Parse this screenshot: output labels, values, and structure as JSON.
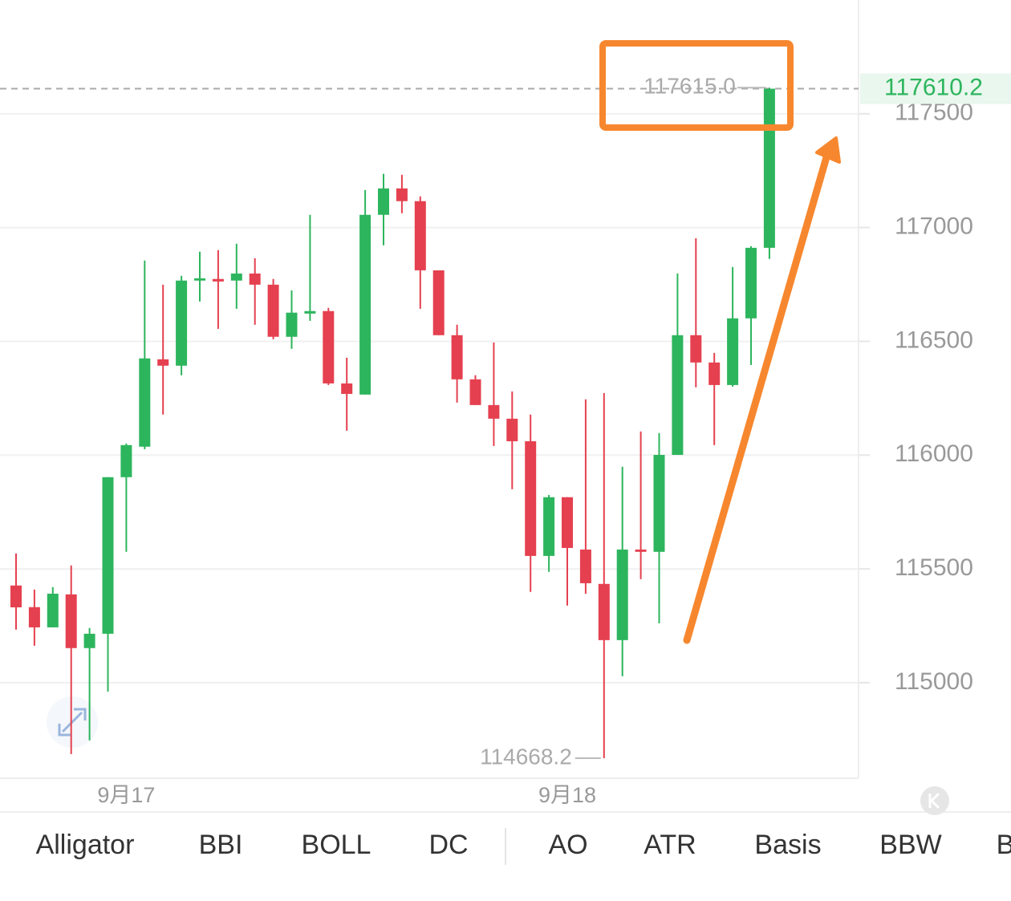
{
  "chart_data": {
    "type": "candlestick",
    "categories": [
      null,
      null,
      null,
      null,
      null,
      null,
      "9月17",
      null,
      null,
      null,
      null,
      null,
      null,
      null,
      null,
      null,
      null,
      null,
      null,
      null,
      null,
      null,
      null,
      null,
      null,
      null,
      null,
      null,
      null,
      null,
      "9月18",
      null,
      null,
      null,
      null,
      null,
      null,
      null,
      null,
      null,
      null,
      null
    ],
    "open": [
      115427,
      115332,
      115243,
      115388,
      115152,
      115215,
      115903,
      116037,
      116421,
      116393,
      116767,
      116774,
      116767,
      116798,
      116749,
      116520,
      116622,
      116633,
      116315,
      116266,
      117056,
      117172,
      117116,
      116812,
      116527,
      116333,
      116220,
      116160,
      116061,
      115557,
      115815,
      115585,
      115434,
      115187,
      115585,
      115575,
      116001,
      116527,
      116407,
      116308,
      116601,
      116911
    ],
    "high": [
      115568,
      115409,
      115420,
      115515,
      115240,
      115903,
      116051,
      116855,
      116749,
      116788,
      116894,
      116901,
      116929,
      116865,
      116774,
      116724,
      117056,
      116647,
      116428,
      117165,
      117236,
      117232,
      117137,
      116812,
      116573,
      116351,
      116495,
      116280,
      116178,
      115825,
      115815,
      116245,
      116273,
      115949,
      116104,
      116097,
      116798,
      116953,
      116449,
      116827,
      116918,
      117615
    ],
    "low": [
      115233,
      115162,
      115243,
      114686,
      114746,
      114961,
      115575,
      116026,
      116178,
      116351,
      116675,
      116555,
      116643,
      116573,
      116509,
      116467,
      116590,
      116308,
      116107,
      116266,
      116922,
      117063,
      116643,
      116527,
      116231,
      116220,
      116040,
      115850,
      115399,
      115487,
      115339,
      115391,
      114668.2,
      115028,
      115455,
      115261,
      116001,
      116298,
      116044,
      116301,
      116396,
      116862
    ],
    "close": [
      115331,
      115243,
      115391,
      115152,
      115215,
      115903,
      116044,
      116425,
      116393,
      116767,
      116777,
      116763,
      116798,
      116749,
      116520,
      116626,
      116633,
      116315,
      116269,
      117056,
      117172,
      117116,
      116812,
      116527,
      116333,
      116220,
      116160,
      116061,
      115557,
      115815,
      115592,
      115437,
      115187,
      115585,
      115575,
      116001,
      116527,
      116407,
      116308,
      116601,
      116911,
      117610.2
    ],
    "up_color": "#2db55d",
    "down_color": "#e5404f",
    "ylim": [
      114580,
      118000
    ],
    "yticks": [
      115000,
      115500,
      116000,
      116500,
      117000,
      117500
    ],
    "grid": true,
    "max_label": {
      "value": 117615,
      "label": "117615.0"
    },
    "min_label": {
      "value": 114668.2,
      "label": "114668.2"
    },
    "last_price": {
      "value": 117610.2,
      "label": "117610.2"
    }
  },
  "indicators": [
    "Alligator",
    "BBI",
    "BOLL",
    "DC",
    "AO",
    "ATR",
    "Basis",
    "BBW",
    "B"
  ]
}
